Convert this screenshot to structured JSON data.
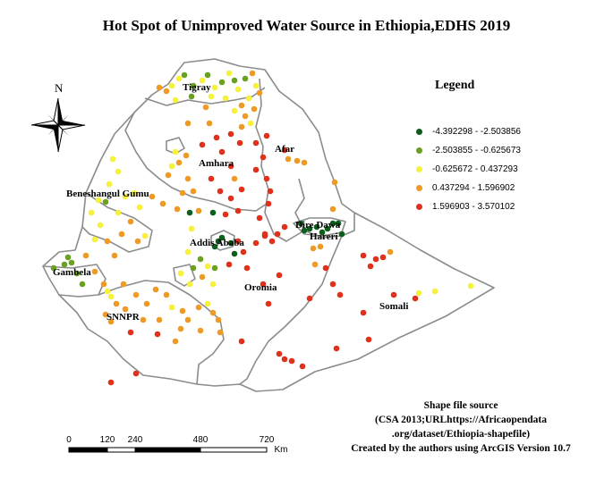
{
  "title": "Hot Spot of  Unimproved Water Source in Ethiopia,EDHS 2019",
  "legend": {
    "title": "Legend",
    "items": [
      {
        "label": "-4.392298 - -2.503856",
        "color": "#0b5e1b"
      },
      {
        "label": "-2.503855 - -0.625673",
        "color": "#6aa121"
      },
      {
        "label": "-0.625672 - 0.437293",
        "color": "#f6f13b"
      },
      {
        "label": "0.437294 - 1.596902",
        "color": "#ef9a25"
      },
      {
        "label": "1.596903 - 3.570102",
        "color": "#e0311c"
      }
    ]
  },
  "north_arrow": {
    "label": "N"
  },
  "regions": [
    "Tigray",
    "Afar",
    "Amhara",
    "Beneshangul Gumu",
    "Dire Dawa",
    "Hareri",
    "Addis Ababa",
    "Gambela",
    "Oromia",
    "Somali",
    "SNNPR"
  ],
  "scale_bar": {
    "ticks": [
      "0",
      "120",
      "240",
      "480",
      "720"
    ],
    "unit": "Km"
  },
  "source_note": [
    "Shape file source",
    "(CSA 2013;URLhttps://Africaopendata",
    ".org/dataset/Ethiopia-shapefile)",
    "Created by the authors using ArcGIS Version 10.7"
  ]
}
